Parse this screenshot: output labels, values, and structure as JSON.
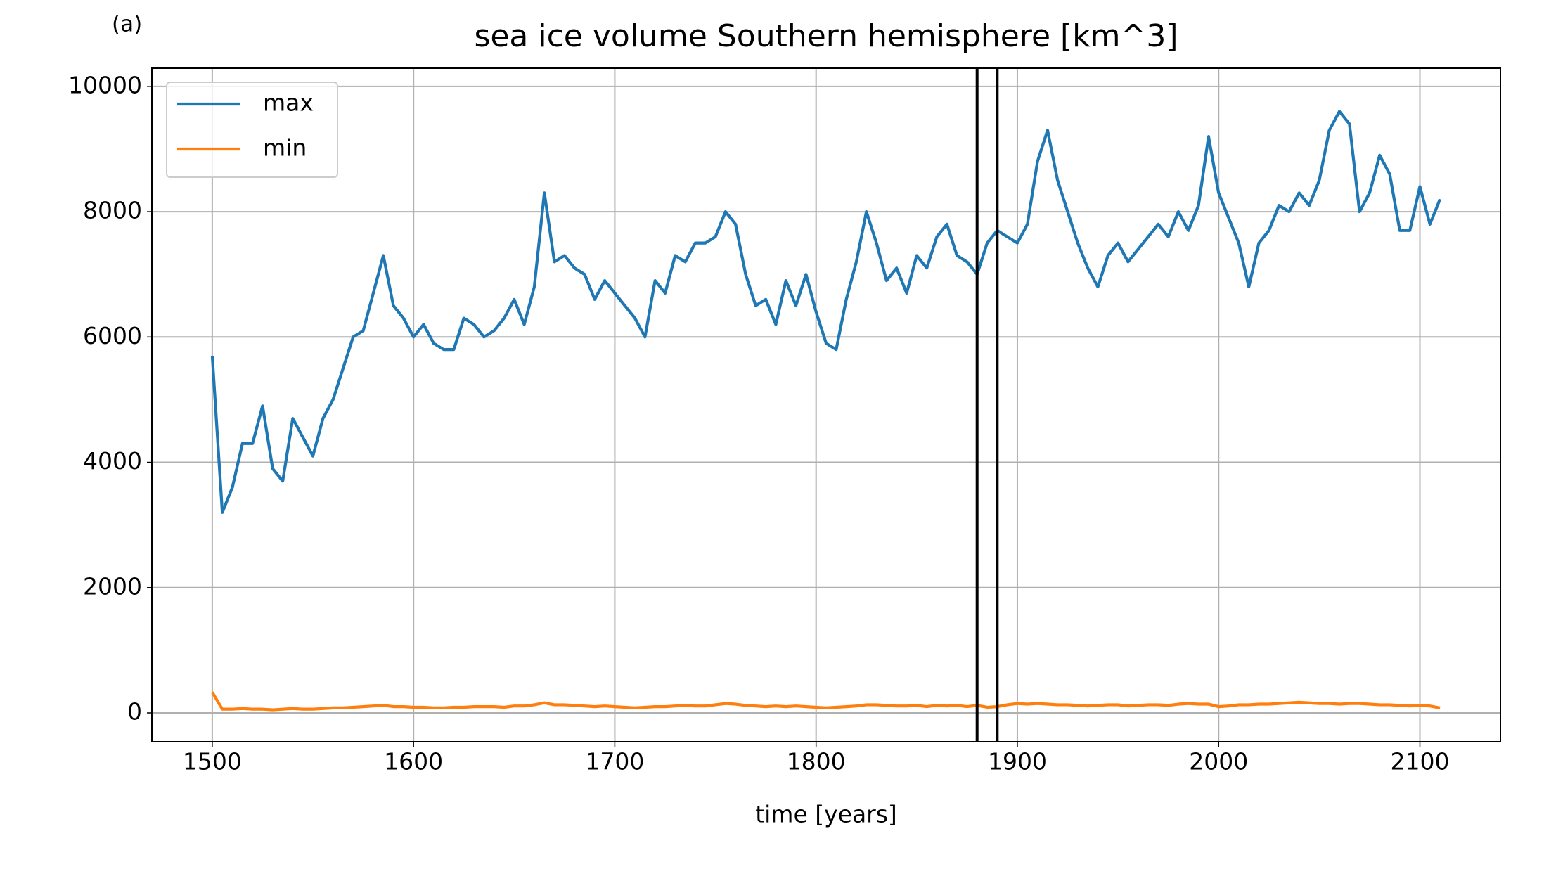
{
  "chart_data": {
    "type": "line",
    "title": "sea ice volume Southern hemisphere [km^3]",
    "annotation": "(a)",
    "xlabel": "time [years]",
    "xlim": [
      1470,
      2140
    ],
    "ylim": [
      -460,
      10290
    ],
    "xticks": [
      1500,
      1600,
      1700,
      1800,
      1900,
      2000,
      2100
    ],
    "yticks": [
      0,
      2000,
      4000,
      6000,
      8000,
      10000
    ],
    "grid": true,
    "legend": "upper left",
    "vlines": [
      1880,
      1890
    ],
    "vline_color": "#000000",
    "x": [
      1500,
      1505,
      1510,
      1515,
      1520,
      1525,
      1530,
      1535,
      1540,
      1545,
      1550,
      1555,
      1560,
      1565,
      1570,
      1575,
      1580,
      1585,
      1590,
      1595,
      1600,
      1605,
      1610,
      1615,
      1620,
      1625,
      1630,
      1635,
      1640,
      1645,
      1650,
      1655,
      1660,
      1665,
      1670,
      1675,
      1680,
      1685,
      1690,
      1695,
      1700,
      1705,
      1710,
      1715,
      1720,
      1725,
      1730,
      1735,
      1740,
      1745,
      1750,
      1755,
      1760,
      1765,
      1770,
      1775,
      1780,
      1785,
      1790,
      1795,
      1800,
      1805,
      1810,
      1815,
      1820,
      1825,
      1830,
      1835,
      1840,
      1845,
      1850,
      1855,
      1860,
      1865,
      1870,
      1875,
      1880,
      1885,
      1890,
      1895,
      1900,
      1905,
      1910,
      1915,
      1920,
      1925,
      1930,
      1935,
      1940,
      1945,
      1950,
      1955,
      1960,
      1965,
      1970,
      1975,
      1980,
      1985,
      1990,
      1995,
      2000,
      2005,
      2010,
      2015,
      2020,
      2025,
      2030,
      2035,
      2040,
      2045,
      2050,
      2055,
      2060,
      2065,
      2070,
      2075,
      2080,
      2085,
      2090,
      2095,
      2100,
      2105,
      2110
    ],
    "series": [
      {
        "name": "max",
        "color": "#1f77b4",
        "values": [
          5700,
          3200,
          3600,
          4300,
          4300,
          4900,
          3900,
          3700,
          4700,
          4400,
          4100,
          4700,
          5000,
          5500,
          6000,
          6100,
          6700,
          7300,
          6500,
          6300,
          6000,
          6200,
          5900,
          5800,
          5800,
          6300,
          6200,
          6000,
          6100,
          6300,
          6600,
          6200,
          6800,
          8300,
          7200,
          7300,
          7100,
          7000,
          6600,
          6900,
          6700,
          6500,
          6300,
          6000,
          6900,
          6700,
          7300,
          7200,
          7500,
          7500,
          7600,
          8000,
          7800,
          7000,
          6500,
          6600,
          6200,
          6900,
          6500,
          7000,
          6400,
          5900,
          5800,
          6600,
          7200,
          8000,
          7500,
          6900,
          7100,
          6700,
          7300,
          7100,
          7600,
          7800,
          7300,
          7200,
          7000,
          7500,
          7700,
          7600,
          7500,
          7800,
          8800,
          9300,
          8500,
          8000,
          7500,
          7100,
          6800,
          7300,
          7500,
          7200,
          7400,
          7600,
          7800,
          7600,
          8000,
          7700,
          8100,
          9200,
          8300,
          7900,
          7500,
          6800,
          7500,
          7700,
          8100,
          8000,
          8300,
          8100,
          8500,
          9300,
          9600,
          9400,
          8000,
          8300,
          8900,
          8600,
          7700,
          7700,
          8400,
          7800,
          8200
        ]
      },
      {
        "name": "min",
        "color": "#ff7f0e",
        "values": [
          330,
          60,
          60,
          70,
          60,
          60,
          50,
          60,
          70,
          60,
          60,
          70,
          80,
          80,
          90,
          100,
          110,
          120,
          100,
          100,
          90,
          90,
          80,
          80,
          90,
          90,
          100,
          100,
          100,
          90,
          110,
          110,
          130,
          160,
          130,
          130,
          120,
          110,
          100,
          110,
          100,
          90,
          80,
          90,
          100,
          100,
          110,
          120,
          110,
          110,
          130,
          150,
          140,
          120,
          110,
          100,
          110,
          100,
          110,
          100,
          90,
          80,
          90,
          100,
          110,
          130,
          130,
          120,
          110,
          110,
          120,
          100,
          120,
          110,
          120,
          100,
          120,
          90,
          100,
          130,
          150,
          140,
          150,
          140,
          130,
          130,
          120,
          110,
          120,
          130,
          130,
          110,
          120,
          130,
          130,
          120,
          140,
          150,
          140,
          140,
          100,
          110,
          130,
          130,
          140,
          140,
          150,
          160,
          170,
          160,
          150,
          150,
          140,
          150,
          150,
          140,
          130,
          130,
          120,
          110,
          120,
          110,
          80
        ]
      }
    ]
  }
}
